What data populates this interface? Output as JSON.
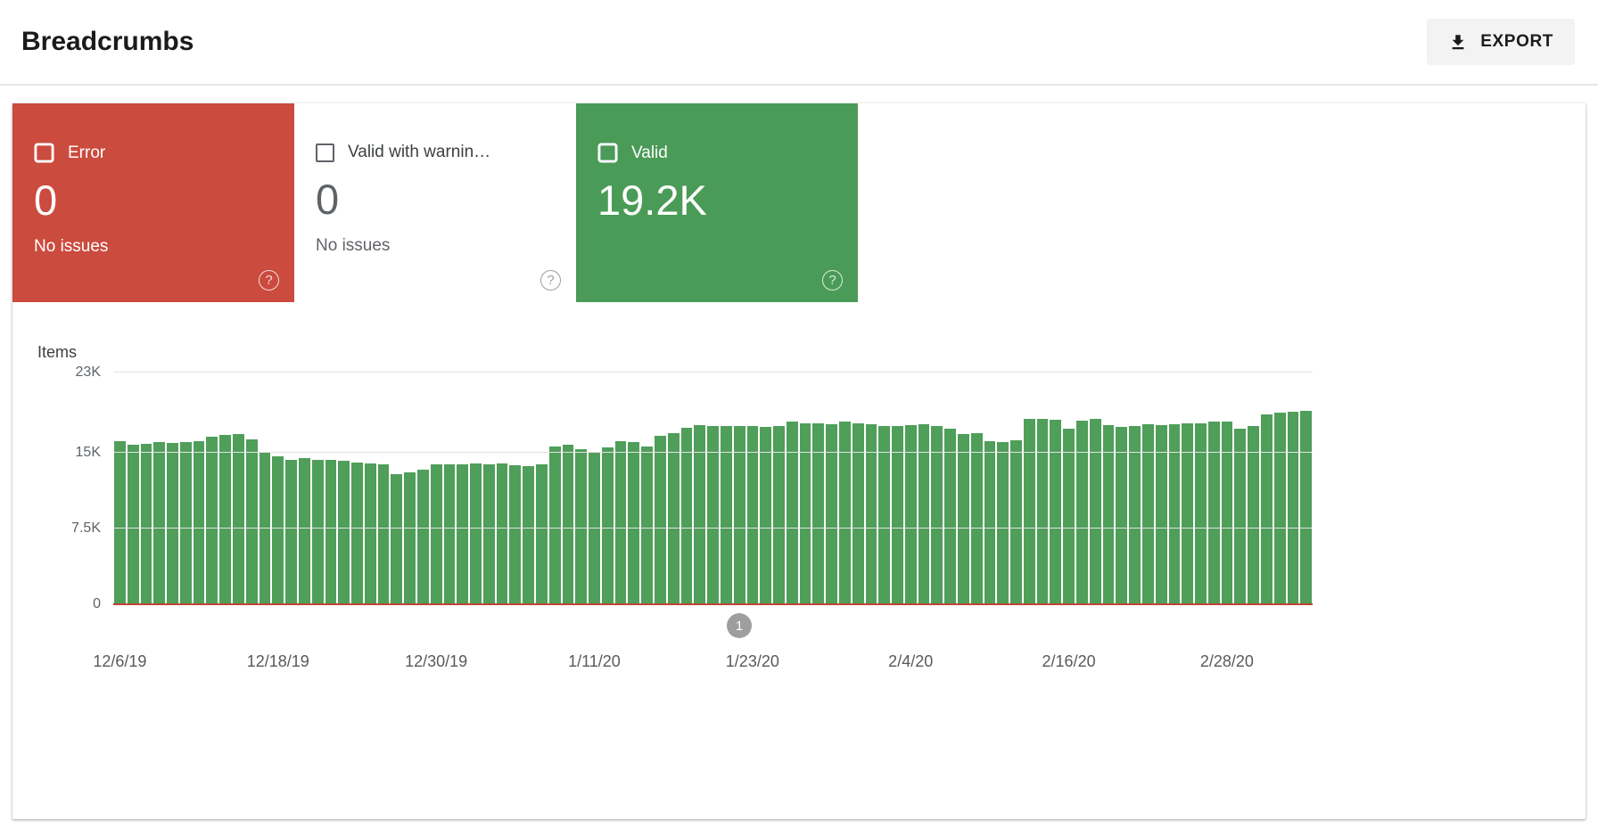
{
  "header": {
    "title": "Breadcrumbs",
    "export_label": "EXPORT"
  },
  "cards": [
    {
      "label": "Error",
      "value": "0",
      "sub": "No issues",
      "checked": true,
      "bg": "#cb4b3e",
      "fg": "#ffffff"
    },
    {
      "label": "Valid with warnin…",
      "value": "0",
      "sub": "No issues",
      "checked": false,
      "bg": "#ffffff",
      "fg": "#3c4043"
    },
    {
      "label": "Valid",
      "value": "19.2K",
      "sub": "",
      "checked": true,
      "bg": "#4a9b57",
      "fg": "#ffffff"
    }
  ],
  "chart_data": {
    "type": "bar",
    "title": "Items",
    "ylabel": "Items",
    "ylim": [
      0,
      23000
    ],
    "grid": true,
    "yticks": [
      {
        "label": "0",
        "value": 0
      },
      {
        "label": "7.5K",
        "value": 7500
      },
      {
        "label": "15K",
        "value": 15000
      },
      {
        "label": "23K",
        "value": 23000
      }
    ],
    "x_labels": [
      {
        "label": "12/6/19",
        "index": 0
      },
      {
        "label": "12/18/19",
        "index": 12
      },
      {
        "label": "12/30/19",
        "index": 24
      },
      {
        "label": "1/11/20",
        "index": 36
      },
      {
        "label": "1/23/20",
        "index": 48
      },
      {
        "label": "2/4/20",
        "index": 60
      },
      {
        "label": "2/16/20",
        "index": 72
      },
      {
        "label": "2/28/20",
        "index": 84
      }
    ],
    "series": [
      {
        "name": "Valid",
        "color": "#4f9e59",
        "values": [
          16200,
          15800,
          15900,
          16100,
          16000,
          16100,
          16200,
          16600,
          16800,
          16900,
          16400,
          15100,
          14700,
          14300,
          14500,
          14300,
          14300,
          14200,
          14100,
          14000,
          13900,
          12900,
          13100,
          13400,
          13900,
          13900,
          13900,
          14000,
          13900,
          14000,
          13800,
          13700,
          13900,
          15700,
          15800,
          15400,
          15000,
          15600,
          16200,
          16100,
          15700,
          16700,
          17000,
          17500,
          17800,
          17700,
          17700,
          17700,
          17700,
          17600,
          17700,
          18100,
          18000,
          18000,
          17900,
          18100,
          18000,
          17900,
          17700,
          17700,
          17800,
          17900,
          17700,
          17400,
          16900,
          17000,
          16200,
          16100,
          16300,
          18400,
          18400,
          18300,
          17400,
          18200,
          18400,
          17800,
          17600,
          17700,
          17900,
          17800,
          17900,
          18000,
          18000,
          18100,
          18100,
          17400,
          17700,
          18800,
          19000,
          19100,
          19200
        ]
      },
      {
        "name": "Error",
        "color": "#bc4437",
        "constant_value": 0
      }
    ],
    "annotation": {
      "label": "1",
      "bar_index": 47
    }
  }
}
